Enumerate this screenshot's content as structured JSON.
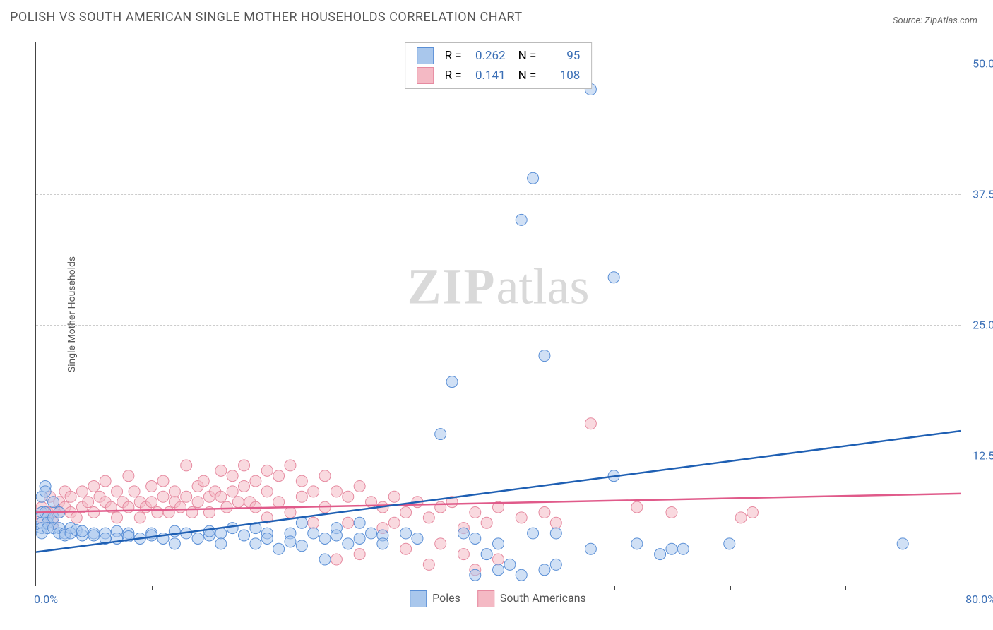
{
  "title": "POLISH VS SOUTH AMERICAN SINGLE MOTHER HOUSEHOLDS CORRELATION CHART",
  "source": "Source: ZipAtlas.com",
  "y_axis_label": "Single Mother Households",
  "watermark": {
    "big": "ZIP",
    "small": "atlas"
  },
  "chart": {
    "type": "scatter",
    "xlim": [
      0,
      80
    ],
    "ylim": [
      0,
      52
    ],
    "x_origin_label": "0.0%",
    "x_max_label": "80.0%",
    "y_ticks": [
      {
        "v": 12.5,
        "label": "12.5%"
      },
      {
        "v": 25.0,
        "label": "25.0%"
      },
      {
        "v": 37.5,
        "label": "37.5%"
      },
      {
        "v": 50.0,
        "label": "50.0%"
      }
    ],
    "x_tick_positions": [
      10,
      20,
      30,
      40,
      50,
      60,
      70
    ],
    "background_color": "#ffffff",
    "grid_color": "#cccccc",
    "axis_color": "#444444",
    "marker_radius": 8,
    "marker_opacity": 0.55,
    "marker_stroke_width": 1
  },
  "series": {
    "poles": {
      "label": "Poles",
      "fill_color": "#a9c7ec",
      "stroke_color": "#5a8fd6",
      "trend_color": "#1e5fb3",
      "trend_width": 2.5,
      "R": "0.262",
      "N": "95",
      "trend": {
        "y_at_x0": 3.2,
        "y_at_xmax": 14.8
      },
      "points": [
        [
          0.5,
          8.5
        ],
        [
          0.5,
          7.0
        ],
        [
          0.5,
          6.0
        ],
        [
          0.5,
          5.5
        ],
        [
          0.5,
          5.0
        ],
        [
          0.8,
          9.5
        ],
        [
          0.8,
          9.0
        ],
        [
          0.8,
          7.0
        ],
        [
          1,
          6.5
        ],
        [
          1,
          6.0
        ],
        [
          1,
          5.5
        ],
        [
          1.5,
          8.0
        ],
        [
          1.5,
          6.5
        ],
        [
          1.5,
          5.5
        ],
        [
          2,
          7.0
        ],
        [
          2,
          5.5
        ],
        [
          2,
          5.0
        ],
        [
          2.5,
          5.0
        ],
        [
          2.5,
          4.8
        ],
        [
          3,
          5.5
        ],
        [
          3,
          5.0
        ],
        [
          3.5,
          5.3
        ],
        [
          4,
          4.8
        ],
        [
          4,
          5.2
        ],
        [
          5,
          5.0
        ],
        [
          5,
          4.8
        ],
        [
          6,
          5.0
        ],
        [
          6,
          4.5
        ],
        [
          7,
          5.2
        ],
        [
          7,
          4.5
        ],
        [
          8,
          5.0
        ],
        [
          8,
          4.7
        ],
        [
          9,
          4.5
        ],
        [
          10,
          5.0
        ],
        [
          10,
          4.8
        ],
        [
          11,
          4.5
        ],
        [
          12,
          5.2
        ],
        [
          12,
          4.0
        ],
        [
          13,
          5.0
        ],
        [
          14,
          4.5
        ],
        [
          15,
          4.8
        ],
        [
          15,
          5.2
        ],
        [
          16,
          5.0
        ],
        [
          16,
          4.0
        ],
        [
          17,
          5.5
        ],
        [
          18,
          4.8
        ],
        [
          19,
          5.5
        ],
        [
          19,
          4.0
        ],
        [
          20,
          5.0
        ],
        [
          20,
          4.5
        ],
        [
          21,
          3.5
        ],
        [
          22,
          5.0
        ],
        [
          22,
          4.2
        ],
        [
          23,
          6.0
        ],
        [
          23,
          3.8
        ],
        [
          24,
          5.0
        ],
        [
          25,
          4.5
        ],
        [
          25,
          2.5
        ],
        [
          26,
          5.5
        ],
        [
          26,
          4.8
        ],
        [
          27,
          4.0
        ],
        [
          28,
          6.0
        ],
        [
          28,
          4.5
        ],
        [
          29,
          5.0
        ],
        [
          30,
          4.8
        ],
        [
          30,
          4.0
        ],
        [
          32,
          5.0
        ],
        [
          33,
          4.5
        ],
        [
          35,
          14.5
        ],
        [
          36,
          19.5
        ],
        [
          37,
          5.0
        ],
        [
          38,
          4.5
        ],
        [
          38,
          1.0
        ],
        [
          39,
          3.0
        ],
        [
          40,
          4.0
        ],
        [
          40,
          1.5
        ],
        [
          41,
          2.0
        ],
        [
          42,
          35.0
        ],
        [
          42,
          1.0
        ],
        [
          43,
          5.0
        ],
        [
          43,
          39.0
        ],
        [
          44,
          22.0
        ],
        [
          44,
          1.5
        ],
        [
          45,
          5.0
        ],
        [
          45,
          2.0
        ],
        [
          48,
          3.5
        ],
        [
          48,
          47.5
        ],
        [
          50,
          29.5
        ],
        [
          50,
          10.5
        ],
        [
          52,
          4.0
        ],
        [
          54,
          3.0
        ],
        [
          55,
          3.5
        ],
        [
          56,
          3.5
        ],
        [
          60,
          4.0
        ],
        [
          75,
          4.0
        ]
      ]
    },
    "south_americans": {
      "label": "South Americans",
      "fill_color": "#f4b9c4",
      "stroke_color": "#e68aa0",
      "trend_color": "#e05a8a",
      "trend_width": 2.5,
      "R": "0.141",
      "N": "108",
      "trend": {
        "y_at_x0": 7.0,
        "y_at_xmax": 8.8
      },
      "points": [
        [
          0.5,
          7.5
        ],
        [
          0.5,
          6.5
        ],
        [
          1,
          7.0
        ],
        [
          1,
          6.5
        ],
        [
          1.2,
          8.5
        ],
        [
          1.5,
          7.0
        ],
        [
          1.5,
          6.0
        ],
        [
          2,
          8.0
        ],
        [
          2,
          7.0
        ],
        [
          2.5,
          9.0
        ],
        [
          2.5,
          7.5
        ],
        [
          3,
          8.5
        ],
        [
          3,
          7.0
        ],
        [
          3.5,
          6.5
        ],
        [
          4,
          9.0
        ],
        [
          4,
          7.5
        ],
        [
          4.5,
          8.0
        ],
        [
          5,
          9.5
        ],
        [
          5,
          7.0
        ],
        [
          5.5,
          8.5
        ],
        [
          6,
          10.0
        ],
        [
          6,
          8.0
        ],
        [
          6.5,
          7.5
        ],
        [
          7,
          9.0
        ],
        [
          7,
          6.5
        ],
        [
          7.5,
          8.0
        ],
        [
          8,
          10.5
        ],
        [
          8,
          7.5
        ],
        [
          8.5,
          9.0
        ],
        [
          9,
          8.0
        ],
        [
          9,
          6.5
        ],
        [
          9.5,
          7.5
        ],
        [
          10,
          9.5
        ],
        [
          10,
          8.0
        ],
        [
          10.5,
          7.0
        ],
        [
          11,
          10.0
        ],
        [
          11,
          8.5
        ],
        [
          11.5,
          7.0
        ],
        [
          12,
          9.0
        ],
        [
          12,
          8.0
        ],
        [
          12.5,
          7.5
        ],
        [
          13,
          11.5
        ],
        [
          13,
          8.5
        ],
        [
          13.5,
          7.0
        ],
        [
          14,
          9.5
        ],
        [
          14,
          8.0
        ],
        [
          14.5,
          10.0
        ],
        [
          15,
          8.5
        ],
        [
          15,
          7.0
        ],
        [
          15.5,
          9.0
        ],
        [
          16,
          11.0
        ],
        [
          16,
          8.5
        ],
        [
          16.5,
          7.5
        ],
        [
          17,
          10.5
        ],
        [
          17,
          9.0
        ],
        [
          17.5,
          8.0
        ],
        [
          18,
          11.5
        ],
        [
          18,
          9.5
        ],
        [
          18.5,
          8.0
        ],
        [
          19,
          10.0
        ],
        [
          19,
          7.5
        ],
        [
          20,
          11.0
        ],
        [
          20,
          9.0
        ],
        [
          20,
          6.5
        ],
        [
          21,
          10.5
        ],
        [
          21,
          8.0
        ],
        [
          22,
          11.5
        ],
        [
          22,
          7.0
        ],
        [
          23,
          10.0
        ],
        [
          23,
          8.5
        ],
        [
          24,
          9.0
        ],
        [
          24,
          6.0
        ],
        [
          25,
          10.5
        ],
        [
          25,
          7.5
        ],
        [
          26,
          9.0
        ],
        [
          26,
          2.5
        ],
        [
          27,
          8.5
        ],
        [
          27,
          6.0
        ],
        [
          28,
          9.5
        ],
        [
          28,
          3.0
        ],
        [
          29,
          8.0
        ],
        [
          30,
          7.5
        ],
        [
          30,
          5.5
        ],
        [
          31,
          8.5
        ],
        [
          31,
          6.0
        ],
        [
          32,
          7.0
        ],
        [
          32,
          3.5
        ],
        [
          33,
          8.0
        ],
        [
          34,
          6.5
        ],
        [
          34,
          2.0
        ],
        [
          35,
          7.5
        ],
        [
          35,
          4.0
        ],
        [
          36,
          8.0
        ],
        [
          37,
          5.5
        ],
        [
          37,
          3.0
        ],
        [
          38,
          7.0
        ],
        [
          38,
          1.5
        ],
        [
          39,
          6.0
        ],
        [
          40,
          7.5
        ],
        [
          40,
          2.5
        ],
        [
          42,
          6.5
        ],
        [
          44,
          7.0
        ],
        [
          45,
          6.0
        ],
        [
          48,
          15.5
        ],
        [
          52,
          7.5
        ],
        [
          55,
          7.0
        ],
        [
          61,
          6.5
        ],
        [
          62,
          7.0
        ]
      ]
    }
  },
  "legend_top": {
    "R_label": "R =",
    "N_label": "N ="
  }
}
